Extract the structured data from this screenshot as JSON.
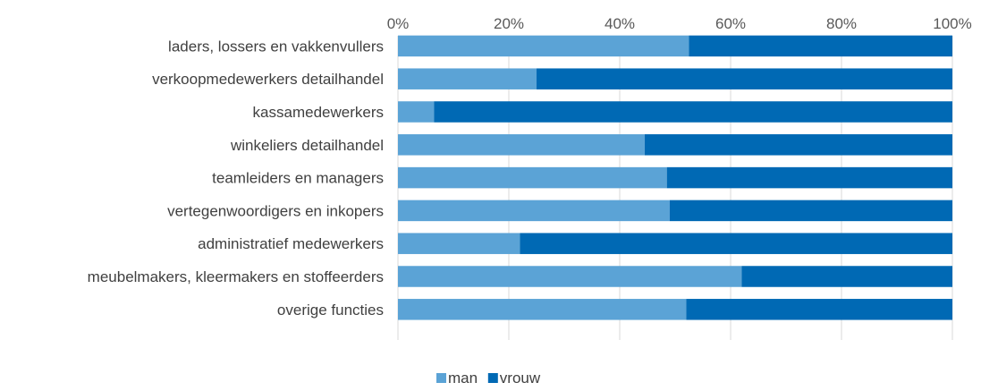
{
  "chart_data": {
    "type": "bar",
    "orientation": "horizontal",
    "stacked": "percent",
    "title": "",
    "xlabel": "",
    "ylabel": "",
    "xlim": [
      0,
      100
    ],
    "x_ticks": [
      "0%",
      "20%",
      "40%",
      "60%",
      "80%",
      "100%"
    ],
    "x_axis_position": "top",
    "grid": "vertical",
    "legend_position": "bottom",
    "categories": [
      "laders, lossers en vakkenvullers",
      "verkoopmedewerkers detailhandel",
      "kassamedewerkers",
      "winkeliers detailhandel",
      "teamleiders en managers",
      "vertegenwoordigers en inkopers",
      "administratief medewerkers",
      "meubelmakers, kleermakers en stoffeerders",
      "overige functies"
    ],
    "series": [
      {
        "name": "man",
        "color": "#5BA3D6",
        "values": [
          52.5,
          25,
          6.5,
          44.5,
          48.5,
          49,
          22,
          62,
          52
        ]
      },
      {
        "name": "vrouw",
        "color": "#0069B4",
        "values": [
          47.5,
          75,
          93.5,
          55.5,
          51.5,
          51,
          78,
          38,
          48
        ]
      }
    ]
  }
}
